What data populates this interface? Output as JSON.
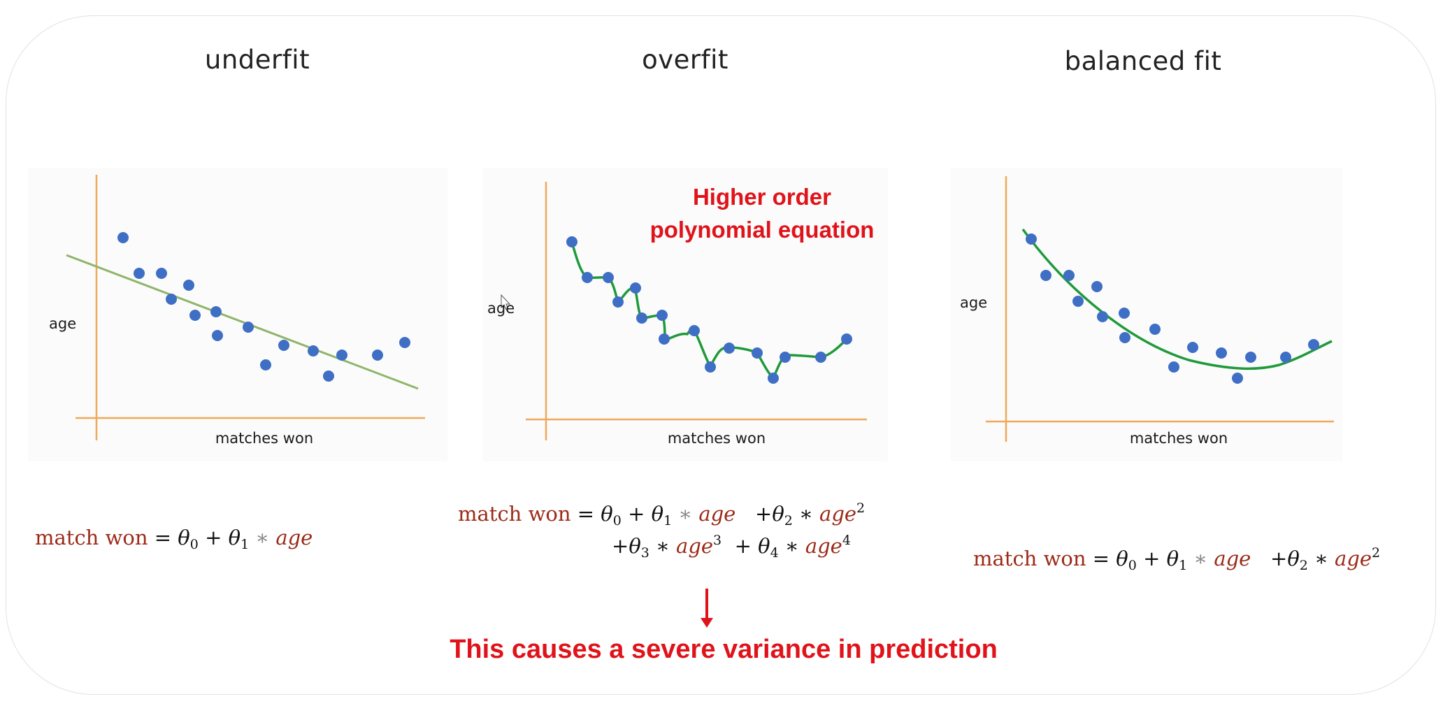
{
  "panels": [
    {
      "title": "underfit",
      "xlabel": "matches won",
      "ylabel": "age",
      "fit": "line",
      "equation": {
        "lhs": "match won",
        "terms": "θ0 + θ1 * age"
      }
    },
    {
      "title": "overfit",
      "xlabel": "matches won",
      "ylabel": "age",
      "fit": "wiggly curve through points",
      "equation": {
        "lhs": "match won",
        "terms": "θ0 + θ1 * age + θ2 * age^2 + θ3 * age^3 + θ4 * age^4"
      }
    },
    {
      "title": "balanced fit",
      "xlabel": "matches won",
      "ylabel": "age",
      "fit": "quadratic curve",
      "equation": {
        "lhs": "match won",
        "terms": "θ0 + θ1 * age + θ2 * age^2"
      }
    }
  ],
  "annotations": {
    "higher_order_line1": "Higher order",
    "higher_order_line2": "polynomial equation",
    "conclusion": "This causes a severe variance in prediction"
  },
  "colors": {
    "axis": "#f0a85a",
    "point": "#3f6fc4",
    "underfit_line": "#8fb56a",
    "fit_curve": "#1f9a3b",
    "annotation_red": "#e0131a",
    "equation_red": "#9c2a17"
  }
}
